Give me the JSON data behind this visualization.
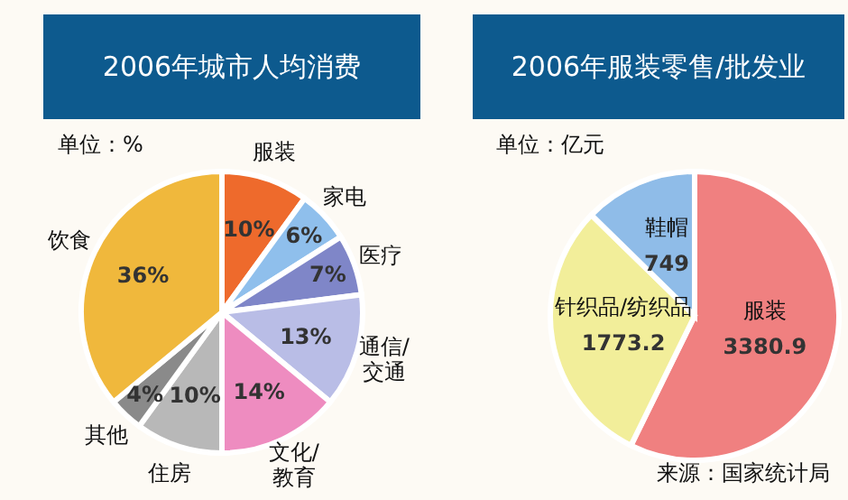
{
  "chart_data": [
    {
      "type": "pie",
      "title": "2006年城市人均消费",
      "subtitle": "单位：%",
      "categories": [
        "服装",
        "家电",
        "医疗",
        "通信/交通",
        "文化/教育",
        "住房",
        "其他",
        "饮食"
      ],
      "values": [
        10,
        6,
        7,
        13,
        14,
        10,
        4,
        36
      ],
      "value_labels": [
        "10%",
        "6%",
        "7%",
        "13%",
        "14%",
        "10%",
        "4%",
        "36%"
      ],
      "colors": [
        "#ee6a2c",
        "#8fbfec",
        "#7f86c8",
        "#b9bde6",
        "#ee8cc0",
        "#b8b8b8",
        "#8a8a8a",
        "#f0b83c"
      ]
    },
    {
      "type": "pie",
      "title": "2006年服装零售/批发业",
      "subtitle": "单位：亿元",
      "categories": [
        "服装",
        "针织品/纺织品",
        "鞋帽"
      ],
      "values": [
        3380.9,
        1773.2,
        749
      ],
      "data_labels": true,
      "colors": [
        "#f08080",
        "#f2ee9a",
        "#8fbce8"
      ],
      "annotations": [
        "来源：国家统计局"
      ]
    }
  ]
}
